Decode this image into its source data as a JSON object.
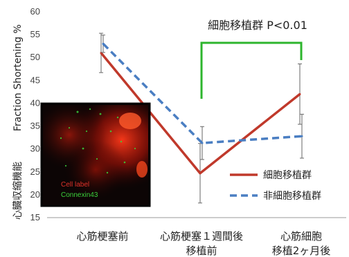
{
  "chart_data": {
    "type": "line",
    "categories": [
      [
        "心筋梗塞前"
      ],
      [
        "心筋梗塞１週間後",
        "移植前"
      ],
      [
        "心筋細胞",
        "移植2ヶ月後"
      ]
    ],
    "series": [
      {
        "name": "細胞移植群",
        "values": [
          51,
          24.7,
          42
        ],
        "err": [
          4.3,
          6.5,
          6.6
        ],
        "color": "#c0392b",
        "dash": false
      },
      {
        "name": "非細胞移植群",
        "values": [
          53,
          31.3,
          32.8
        ],
        "err": [
          1.9,
          3.6,
          4.8
        ],
        "color": "#4a7ec2",
        "dash": true
      }
    ],
    "ylim": [
      15,
      60
    ],
    "yticks": [
      15,
      20,
      25,
      30,
      35,
      40,
      45,
      50,
      55,
      60
    ],
    "ylabel_en": "Fraction Shortening %",
    "ylabel_ja": "心臓収縮機能",
    "significance": {
      "label": "細胞移植群 P<0.01",
      "color": "#2db52d"
    },
    "legend_position": "bottom-right",
    "inset": {
      "label_red": "Cell label",
      "label_green": "Connexin43"
    }
  }
}
